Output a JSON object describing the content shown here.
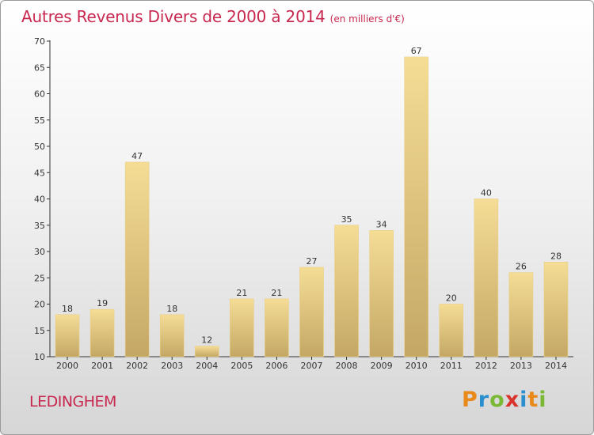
{
  "chart_data": {
    "type": "bar",
    "title": "Autres Revenus Divers de 2000 à 2014",
    "unit_label": "(en milliers d'€)",
    "categories": [
      "2000",
      "2001",
      "2002",
      "2003",
      "2004",
      "2005",
      "2006",
      "2007",
      "2008",
      "2009",
      "2010",
      "2011",
      "2012",
      "2013",
      "2014"
    ],
    "values": [
      18,
      19,
      47,
      18,
      12,
      21,
      21,
      27,
      35,
      34,
      67,
      20,
      40,
      26,
      28
    ],
    "ylim": [
      10,
      70
    ],
    "yticks": [
      10,
      15,
      20,
      25,
      30,
      35,
      40,
      45,
      50,
      55,
      60,
      65,
      70
    ],
    "grid": false,
    "bar_color_top": "#f5dd96",
    "bar_color_bottom": "#c4a765"
  },
  "location": "LEDINGHEM",
  "logo": {
    "text": "Proxiti",
    "letters": [
      "P",
      "r",
      "o",
      "x",
      "i",
      "t",
      "i"
    ]
  },
  "colors": {
    "accent": "#c8284f"
  }
}
